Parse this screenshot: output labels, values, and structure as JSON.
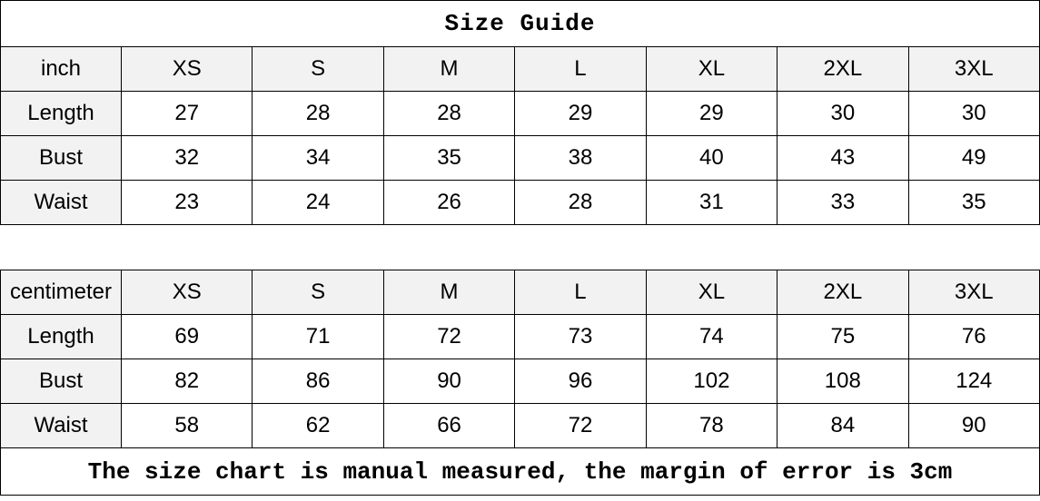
{
  "title": "Size Guide",
  "footer_note": "The size chart is manual measured, the margin of error is 3cm",
  "colors": {
    "header_bg": "#f2f2f2",
    "cell_bg": "#ffffff",
    "border": "#000000",
    "text": "#000000"
  },
  "tables": [
    {
      "unit_label": "inch",
      "sizes": [
        "XS",
        "S",
        "M",
        "L",
        "XL",
        "2XL",
        "3XL"
      ],
      "rows": [
        {
          "label": "Length",
          "values": [
            27,
            28,
            28,
            29,
            29,
            30,
            30
          ]
        },
        {
          "label": "Bust",
          "values": [
            32,
            34,
            35,
            38,
            40,
            43,
            49
          ]
        },
        {
          "label": "Waist",
          "values": [
            23,
            24,
            26,
            28,
            31,
            33,
            35
          ]
        }
      ]
    },
    {
      "unit_label": "centimeter",
      "sizes": [
        "XS",
        "S",
        "M",
        "L",
        "XL",
        "2XL",
        "3XL"
      ],
      "rows": [
        {
          "label": "Length",
          "values": [
            69,
            71,
            72,
            73,
            74,
            75,
            76
          ]
        },
        {
          "label": "Bust",
          "values": [
            82,
            86,
            90,
            96,
            102,
            108,
            124
          ]
        },
        {
          "label": "Waist",
          "values": [
            58,
            62,
            66,
            72,
            78,
            84,
            90
          ]
        }
      ]
    }
  ]
}
